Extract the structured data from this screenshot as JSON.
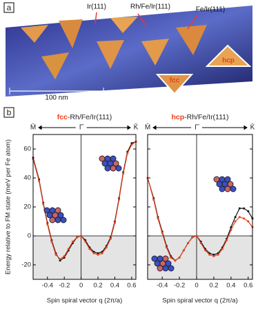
{
  "panel_a": {
    "label": "a",
    "annotations": [
      "Ir(111)",
      "Rh/Fe/Ir(111)",
      "Fe/Ir(111)",
      "hcp",
      "fcc"
    ],
    "scale_bar": "100 nm"
  },
  "panel_b": {
    "label": "b"
  },
  "chart_data": [
    {
      "type": "line",
      "title_highlight": "fcc",
      "title": "-Rh/Fe/Ir(111)",
      "ylabel": "Energy relative to FM state (meV per Fe atom)",
      "xlabel": "Spin spiral vector q (2π/a)",
      "top_ticks": [
        {
          "value": -0.57,
          "label": "M̄"
        },
        {
          "value": 0,
          "label": "Γ̄"
        },
        {
          "value": 0.65,
          "label": "K̄"
        }
      ],
      "x": [
        -0.57,
        -0.5,
        -0.45,
        -0.4,
        -0.35,
        -0.3,
        -0.25,
        -0.2,
        -0.15,
        -0.1,
        -0.05,
        0,
        0.05,
        0.1,
        0.15,
        0.2,
        0.25,
        0.3,
        0.35,
        0.4,
        0.45,
        0.5,
        0.55,
        0.6,
        0.65
      ],
      "series": [
        {
          "color": "#111111",
          "values": [
            54,
            39,
            23,
            9,
            -3,
            -12,
            -17,
            -15,
            -10,
            -5,
            -1,
            0,
            -3,
            -8,
            -11,
            -12,
            -11,
            -7,
            -1,
            10,
            26,
            44,
            58,
            64,
            65
          ]
        },
        {
          "color": "#e8401c",
          "values": [
            53,
            38,
            22,
            8,
            -4,
            -13,
            -16,
            -14,
            -9,
            -4,
            -1,
            0,
            -4,
            -9,
            -12,
            -13,
            -12,
            -8,
            -2,
            9,
            25,
            43,
            57,
            63,
            65
          ]
        }
      ],
      "xlim": [
        -0.57,
        0.65
      ],
      "xticks": [
        -0.4,
        -0.2,
        0,
        0.2,
        0.4,
        0.6
      ],
      "ylim": [
        -30,
        70
      ],
      "yticks": [
        -20,
        0,
        20,
        40,
        60
      ]
    },
    {
      "type": "line",
      "title_highlight": "hcp",
      "title": "-Rh/Fe/Ir(111)",
      "xlabel": "Spin spiral vector q (2π/a)",
      "top_ticks": [
        {
          "value": -0.57,
          "label": "M̄"
        },
        {
          "value": 0,
          "label": "Γ̄"
        },
        {
          "value": 0.65,
          "label": "K̄"
        }
      ],
      "x": [
        -0.57,
        -0.5,
        -0.45,
        -0.4,
        -0.35,
        -0.3,
        -0.25,
        -0.2,
        -0.15,
        -0.1,
        -0.05,
        0,
        0.05,
        0.1,
        0.15,
        0.2,
        0.25,
        0.3,
        0.35,
        0.4,
        0.45,
        0.5,
        0.55,
        0.6,
        0.65
      ],
      "series": [
        {
          "color": "#111111",
          "values": [
            40,
            26,
            13,
            3,
            -7,
            -14,
            -17,
            -15,
            -10,
            -5,
            -1,
            0,
            -4,
            -9,
            -12,
            -13,
            -12,
            -8,
            -2,
            6,
            13,
            19,
            19,
            17,
            12
          ]
        },
        {
          "color": "#e8401c",
          "values": [
            40,
            25,
            12,
            2,
            -8,
            -15,
            -17,
            -15,
            -10,
            -5,
            -1,
            0,
            -5,
            -10,
            -13,
            -14,
            -13,
            -9,
            -3,
            4,
            10,
            13,
            12,
            10,
            6
          ]
        }
      ],
      "xlim": [
        -0.57,
        0.65
      ],
      "xticks": [
        -0.4,
        -0.2,
        0,
        0.2,
        0.4,
        0.6
      ],
      "ylim": [
        -30,
        70
      ],
      "yticks": [
        -20,
        0,
        20,
        40,
        60
      ]
    }
  ]
}
